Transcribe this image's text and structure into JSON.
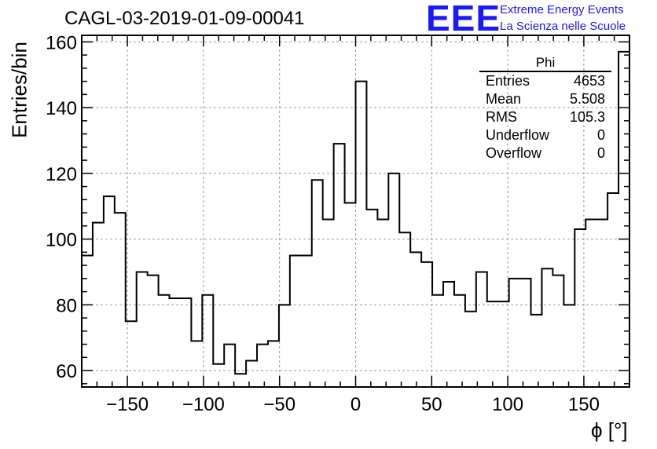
{
  "header": {
    "title": "CAGL-03-2019-01-09-00041",
    "logo_text": "EEE",
    "logo_line1": "Extreme Energy Events",
    "logo_line2": "La Scienza nelle Scuole"
  },
  "stats_box": {
    "title": "Phi",
    "rows": [
      {
        "label": "Entries",
        "value": "4653"
      },
      {
        "label": "Mean",
        "value": "5.508"
      },
      {
        "label": "RMS",
        "value": "105.3"
      },
      {
        "label": "Underflow",
        "value": "0"
      },
      {
        "label": "Overflow",
        "value": "0"
      }
    ]
  },
  "chart_data": {
    "type": "histogram",
    "title": "CAGL-03-2019-01-09-00041",
    "xlabel": "ϕ [°]",
    "ylabel": "Entries/bin",
    "xlim": [
      -180,
      180
    ],
    "ylim": [
      55,
      162
    ],
    "bin_width": 7.2,
    "bin_edges_start": -180,
    "values": [
      95,
      105,
      113,
      108,
      75,
      90,
      89,
      83,
      82,
      82,
      69,
      83,
      62,
      68,
      59,
      63,
      68,
      69,
      80,
      95,
      95,
      118,
      106,
      129,
      111,
      148,
      109,
      106,
      120,
      102,
      96,
      93,
      83,
      87,
      83,
      78,
      90,
      81,
      81,
      88,
      88,
      77,
      91,
      89,
      80,
      103,
      106,
      106,
      114,
      157
    ],
    "xticks": [
      -150,
      -100,
      -50,
      0,
      50,
      100,
      150
    ],
    "yticks": [
      60,
      80,
      100,
      120,
      140,
      160
    ],
    "grid": true,
    "line_color": "#000000"
  }
}
